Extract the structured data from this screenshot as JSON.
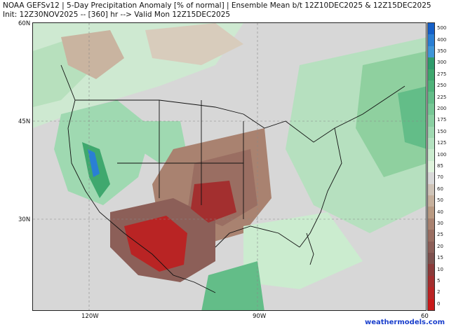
{
  "header": {
    "title_line1": "NOAA GEFSv12 | 5-Day Precipitation Anomaly [% of normal] | Ensemble Mean b/t 12Z10DEC2025 & 12Z15DEC2025",
    "title_line2": "Init: 12Z30NOV2025 -- [360] hr --> Valid Mon 12Z15DEC2025"
  },
  "axes": {
    "lat_labels": [
      "60N",
      "45N",
      "30N"
    ],
    "lon_labels": [
      "120W",
      "90W",
      "60"
    ]
  },
  "colorbar": {
    "levels": [
      "500",
      "400",
      "350",
      "300",
      "275",
      "250",
      "225",
      "200",
      "175",
      "150",
      "125",
      "100",
      "85",
      "70",
      "60",
      "50",
      "40",
      "30",
      "25",
      "20",
      "15",
      "10",
      "5",
      "2",
      "0"
    ],
    "colors": [
      "#1560c8",
      "#2a7fd4",
      "#3f96d8",
      "#2f9c6c",
      "#3fa86e",
      "#4fb37a",
      "#63bd88",
      "#76c795",
      "#8ad0a2",
      "#9fd9b1",
      "#b4e2c0",
      "#cbeccf",
      "#dff3dc",
      "#d9d9d9",
      "#cfc4b8",
      "#c6b09c",
      "#b99a82",
      "#a98270",
      "#9a6e62",
      "#8c5f58",
      "#7d514e",
      "#8b3b3a",
      "#a32f2f",
      "#b92424",
      "#c81a1a"
    ]
  },
  "credit": "weathermodels.com"
}
